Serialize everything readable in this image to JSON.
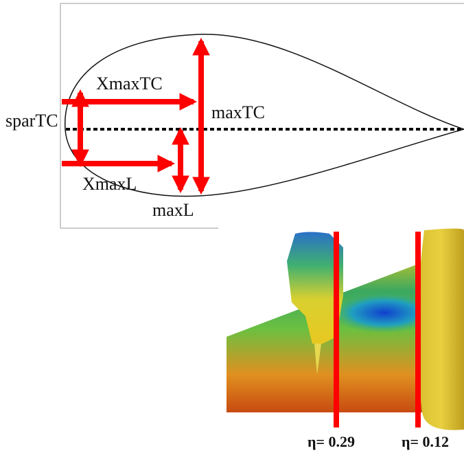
{
  "airfoil": {
    "labels": {
      "xmax_tc": "XmaxTC",
      "max_tc": "maxTC",
      "spar_tc": "sparTC",
      "xmax_l": "XmaxL",
      "max_l": "maxL"
    }
  },
  "cfd": {
    "sections": [
      "η= 0.29",
      "η= 0.12"
    ]
  }
}
